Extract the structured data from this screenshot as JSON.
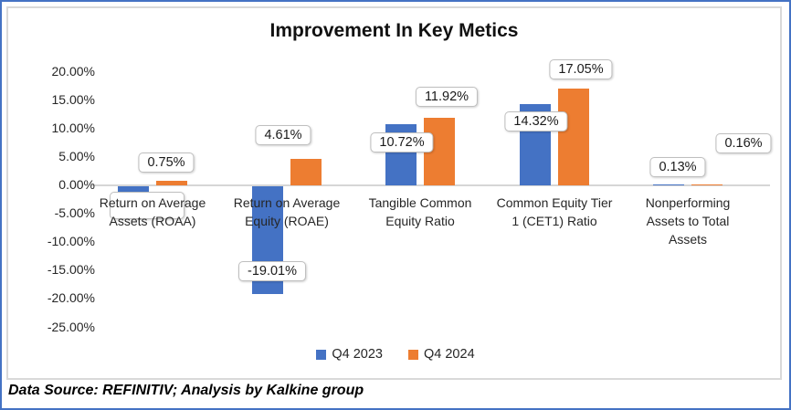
{
  "title": "Improvement In Key Metics",
  "footer": "Data Source: REFINITIV; Analysis by Kalkine group",
  "colors": {
    "series1_blue": "#4472C4",
    "series2_orange": "#ED7D31",
    "axis_line": "#D6D6D6",
    "chart_border": "#D9D9D9",
    "outer_border": "#4472C4",
    "label_box_border": "#BFBFBF",
    "text": "#262626"
  },
  "chart_data": {
    "type": "bar",
    "title": "Improvement In Key Metics",
    "categories": [
      "Return on Average Assets (ROAA)",
      "Return on Average Equity (ROAE)",
      "Tangible Common Equity Ratio",
      "Common Equity Tier 1 (CET1) Ratio",
      "Nonperforming Assets to Total Assets"
    ],
    "series": [
      {
        "name": "Q4 2023",
        "color": "#4472C4",
        "values": [
          -1.0,
          -19.01,
          10.72,
          14.32,
          0.13
        ],
        "data_labels": [
          "",
          "-19.01%",
          "10.72%",
          "14.32%",
          "0.13%"
        ]
      },
      {
        "name": "Q4 2024",
        "color": "#ED7D31",
        "values": [
          0.75,
          4.61,
          11.92,
          17.05,
          0.16
        ],
        "data_labels": [
          "0.75%",
          "4.61%",
          "11.92%",
          "17.05%",
          "0.16%"
        ]
      }
    ],
    "y_axis": {
      "min": -25,
      "max": 20,
      "step": 5,
      "tick_labels": [
        "20.00%",
        "15.00%",
        "10.00%",
        "5.00%",
        "0.00%",
        "-5.00%",
        "-10.00%",
        "-15.00%",
        "-20.00%",
        "-25.00%"
      ]
    },
    "legend": {
      "position": "bottom",
      "entries": [
        "Q4 2023",
        "Q4 2024"
      ]
    },
    "gridlines": false,
    "label_positions": [
      [
        {
          "x": 161,
          "y": 225
        },
        {
          "x": 298,
          "y": 297
        },
        {
          "x": 440,
          "y": 156
        },
        {
          "x": 587,
          "y": 133
        },
        {
          "x": 742,
          "y": 183
        }
      ],
      [
        {
          "x": 182,
          "y": 178
        },
        {
          "x": 310,
          "y": 148
        },
        {
          "x": 489,
          "y": 106
        },
        {
          "x": 636,
          "y": 76
        },
        {
          "x": 814,
          "y": 157
        }
      ]
    ]
  }
}
